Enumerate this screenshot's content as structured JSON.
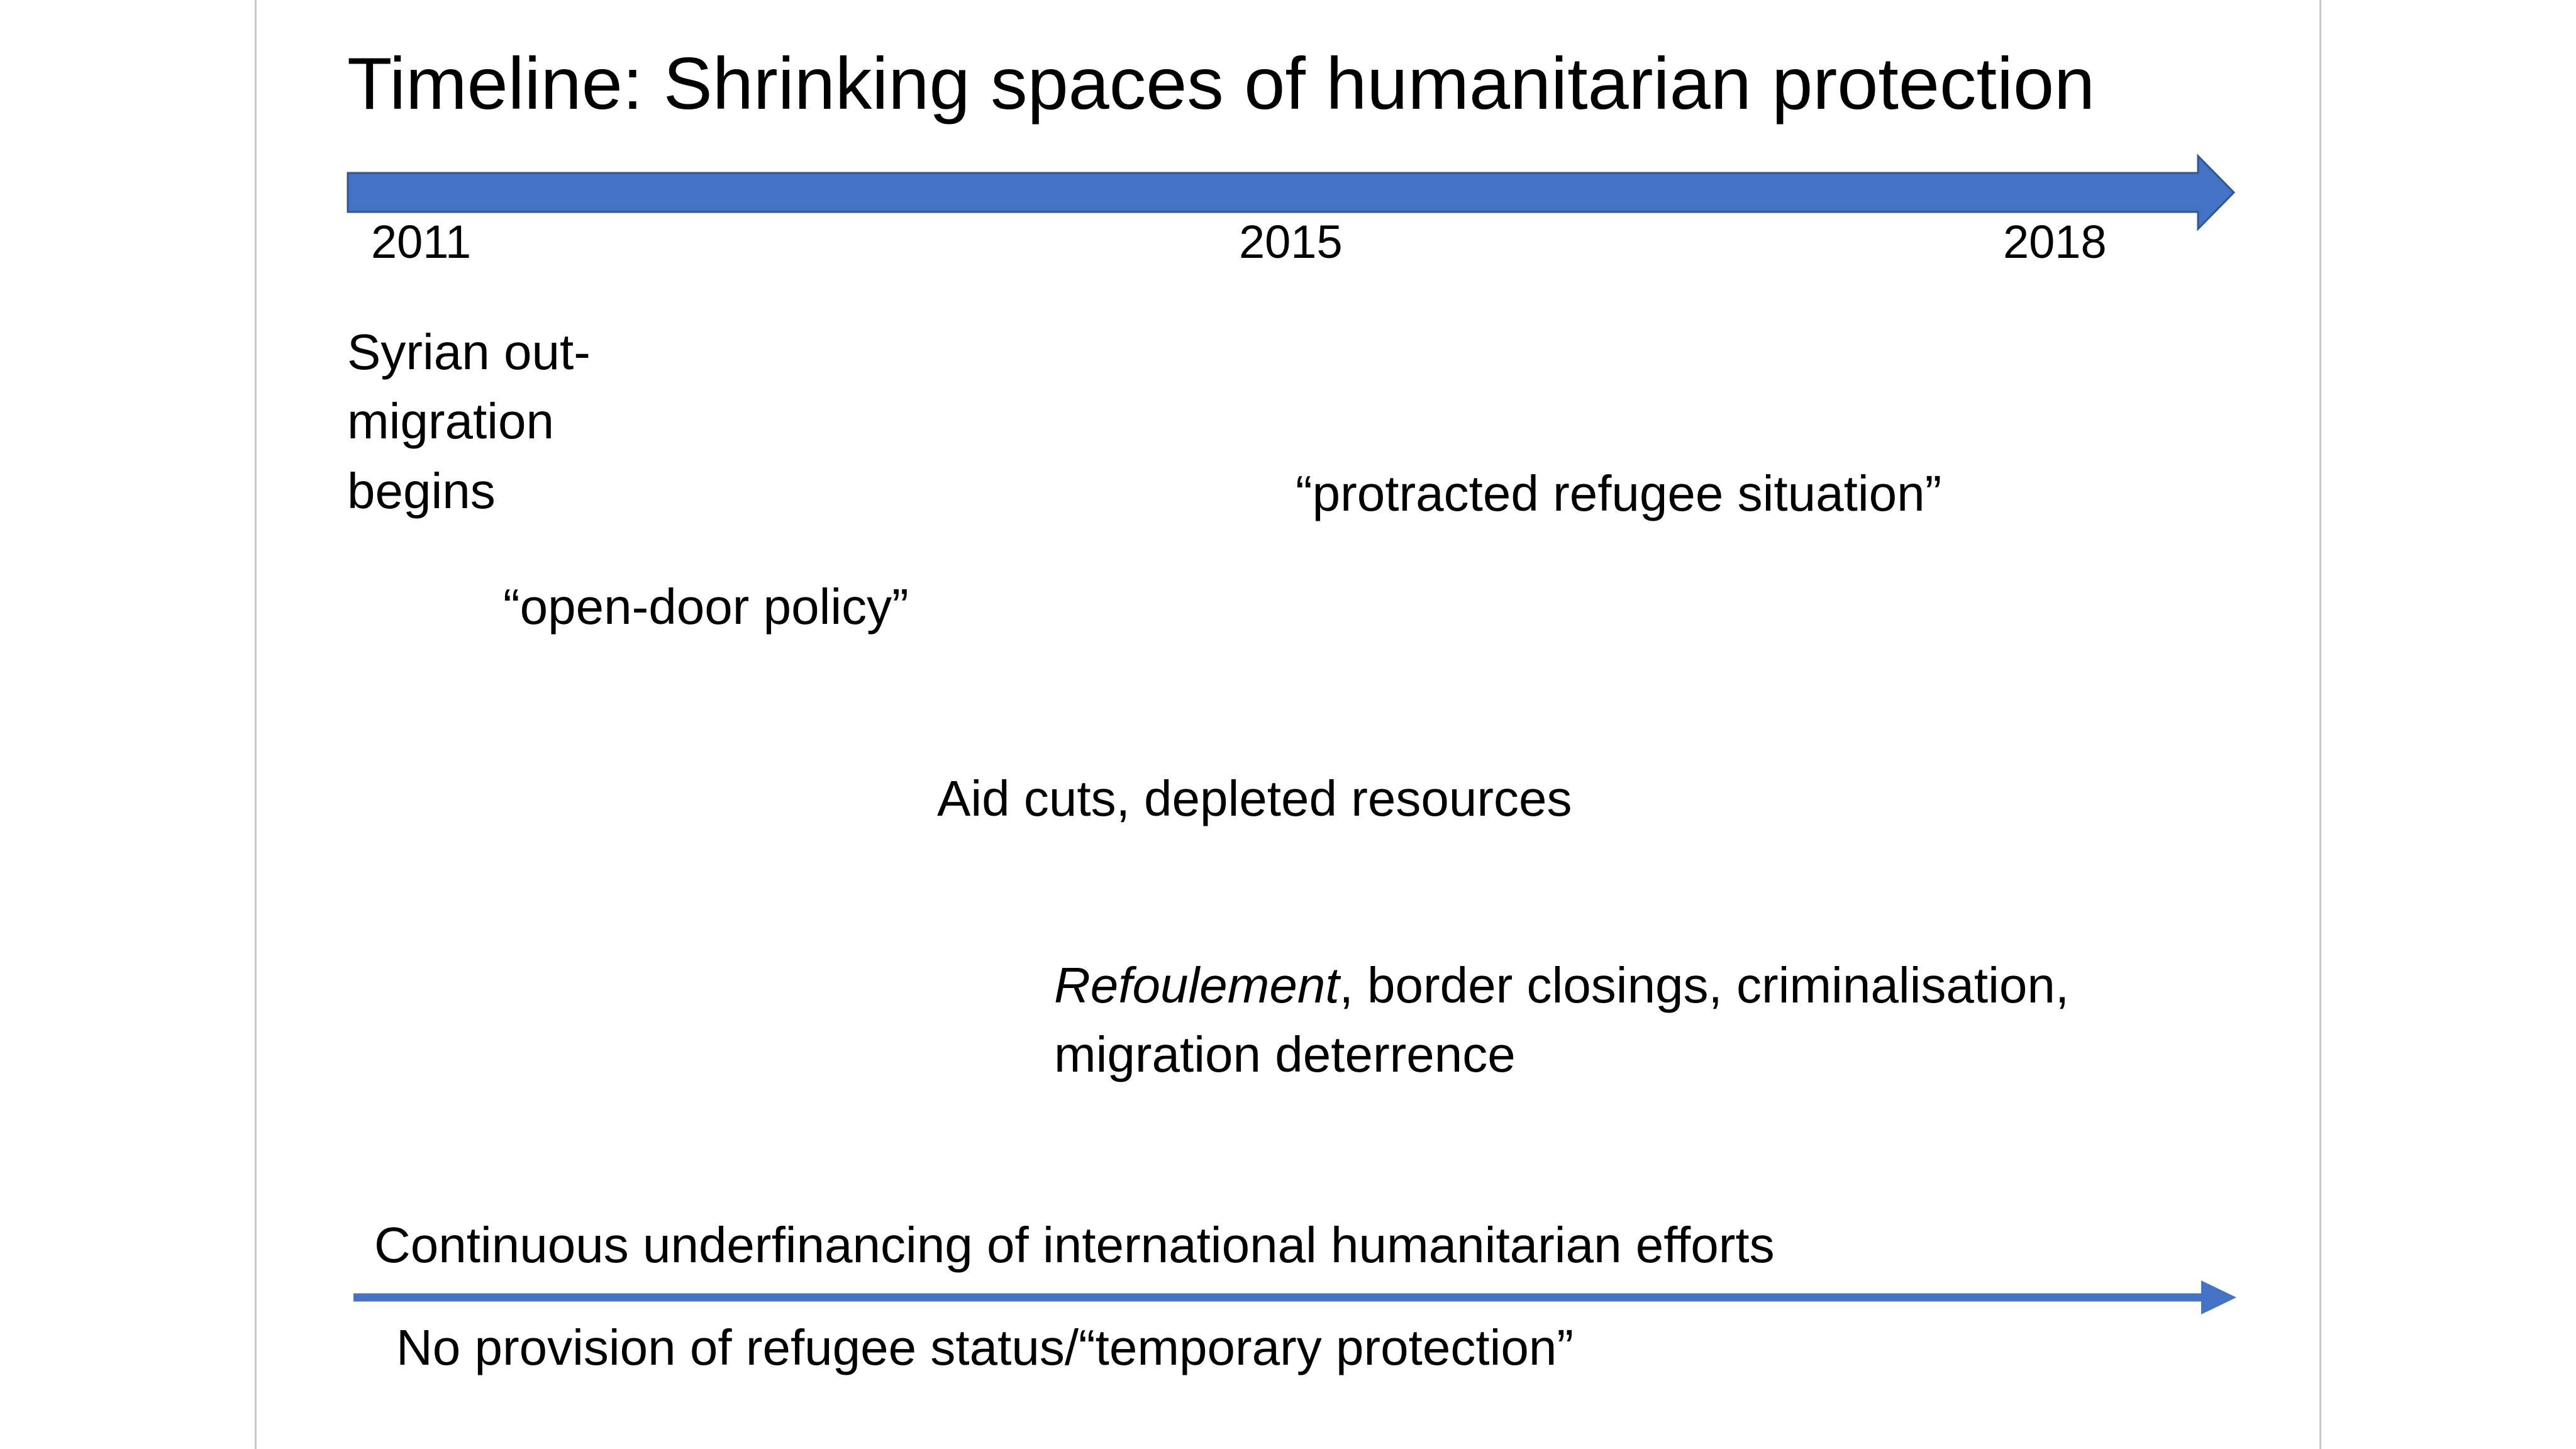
{
  "title": "Timeline: Shrinking spaces of humanitarian protection",
  "colors": {
    "arrow": "#4472C4",
    "arrow_outline": "#2F5597",
    "border": "#C8C8C8"
  },
  "timeline": {
    "years": [
      "2011",
      "2015",
      "2018"
    ]
  },
  "events": {
    "syrian_line1": "Syrian out-",
    "syrian_line2": "migration",
    "syrian_line3": "begins",
    "protracted": "“protracted refugee situation”",
    "open_door": "“open-door policy”",
    "aid_cuts": "Aid cuts, depleted resources",
    "refoulement_italic": "Refoulement",
    "refoulement_rest": ", border closings, criminalisation,",
    "refoulement_line2": "migration deterrence"
  },
  "bottom": {
    "underfinancing": "Continuous underfinancing of international humanitarian efforts",
    "no_provision": "No provision of refugee status/“temporary protection”"
  }
}
